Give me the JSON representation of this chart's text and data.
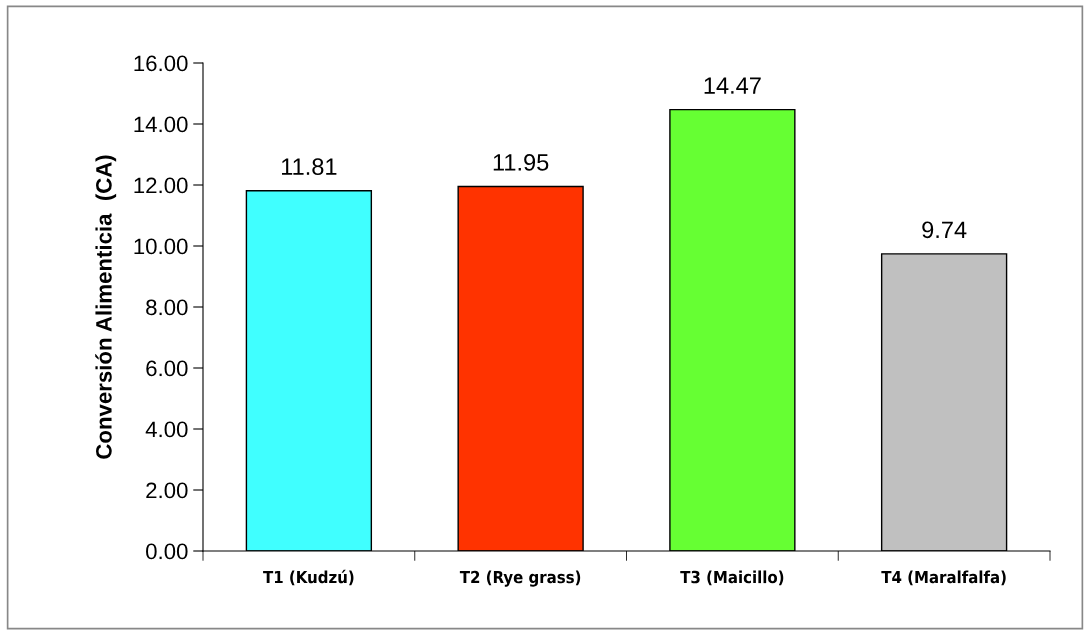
{
  "chart_data": {
    "type": "bar",
    "ylabel": "Conversión Alimenticia  (CA)",
    "categories": [
      "T1 (Kudzú)",
      "T2 (Rye grass)",
      "T3 (Maicillo)",
      "T4 (Maralfalfa)"
    ],
    "values": [
      11.81,
      11.95,
      14.47,
      9.74
    ],
    "colors": [
      "#40ffff",
      "#ff3300",
      "#66ff33",
      "#c0c0c0"
    ],
    "ylim": [
      0,
      16
    ],
    "yticks": [
      {
        "value": 0,
        "label": "0.00"
      },
      {
        "value": 2,
        "label": "2.00"
      },
      {
        "value": 4,
        "label": "4.00"
      },
      {
        "value": 6,
        "label": "6.00"
      },
      {
        "value": 8,
        "label": "8.00"
      },
      {
        "value": 10,
        "label": "10.00"
      },
      {
        "value": 12,
        "label": "12.00"
      },
      {
        "value": 14,
        "label": "14.00"
      },
      {
        "value": 16,
        "label": "16.00"
      }
    ],
    "data_labels": true,
    "grid": false,
    "legend": false
  }
}
